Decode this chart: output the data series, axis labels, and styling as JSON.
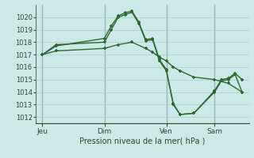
{
  "background_color": "#cce8e8",
  "grid_color": "#aacccc",
  "line_color": "#2d6a2d",
  "xlabel": "Pression niveau de la mer( hPa )",
  "ylim": [
    1011.5,
    1021.0
  ],
  "yticks": [
    1012,
    1013,
    1014,
    1015,
    1016,
    1017,
    1018,
    1019,
    1020
  ],
  "day_labels": [
    "Jeu",
    "Dim",
    "Ven",
    "Sam"
  ],
  "day_positions": [
    0,
    9,
    18,
    25
  ],
  "xlim": [
    -1,
    30
  ],
  "series1_x": [
    0,
    2,
    9,
    10,
    11,
    12,
    13,
    14,
    15,
    16,
    17,
    18,
    19,
    20,
    22,
    25,
    26,
    27,
    28,
    29
  ],
  "series1_y": [
    1017.0,
    1017.7,
    1018.3,
    1019.3,
    1020.1,
    1020.35,
    1020.5,
    1019.6,
    1018.2,
    1018.3,
    1016.6,
    1015.8,
    1013.0,
    1012.2,
    1012.3,
    1014.1,
    1015.0,
    1015.1,
    1015.5,
    1015.0
  ],
  "series2_x": [
    0,
    2,
    9,
    10,
    11,
    12,
    13,
    14,
    15,
    16,
    17,
    18,
    19,
    20,
    22,
    25,
    26,
    27,
    28,
    29
  ],
  "series2_y": [
    1017.0,
    1017.8,
    1018.0,
    1019.0,
    1020.0,
    1020.2,
    1020.4,
    1019.5,
    1018.1,
    1018.2,
    1016.5,
    1015.7,
    1013.1,
    1012.2,
    1012.3,
    1014.0,
    1014.9,
    1015.0,
    1015.4,
    1014.0
  ],
  "series3_x": [
    0,
    2,
    9,
    11,
    13,
    15,
    16,
    17,
    18,
    19,
    20,
    22,
    25,
    27,
    29
  ],
  "series3_y": [
    1017.0,
    1017.3,
    1017.5,
    1017.8,
    1018.0,
    1017.5,
    1017.2,
    1016.8,
    1016.5,
    1016.0,
    1015.7,
    1015.2,
    1015.0,
    1014.7,
    1014.0
  ]
}
